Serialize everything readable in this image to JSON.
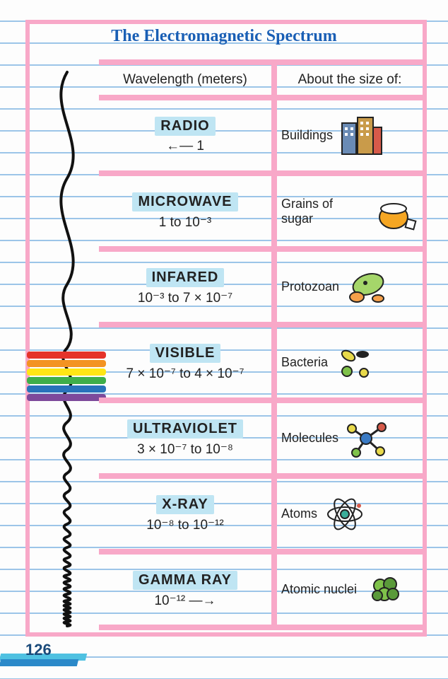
{
  "title": "The Electromagnetic Spectrum",
  "page_number": "126",
  "header": {
    "wavelength_col": "Wavelength (meters)",
    "size_col": "About the size of:"
  },
  "colors": {
    "frame": "#f8a8c8",
    "title": "#1a5fb5",
    "highlight": "#bfe5f3",
    "ruled_line": "#9cc5e8",
    "text": "#222222",
    "page_accent1": "#4fc1e1",
    "page_accent2": "#2b89c9"
  },
  "rainbow_colors": [
    "#e5332a",
    "#f39322",
    "#ffe615",
    "#3eae4a",
    "#2873ba",
    "#7d4a9b"
  ],
  "rows": [
    {
      "name": "RADIO",
      "range_html": "←— 1",
      "size": "Buildings",
      "icon": "buildings"
    },
    {
      "name": "MICROWAVE",
      "range_html": "1 to 10⁻³",
      "size": "Grains of sugar",
      "icon": "sugar"
    },
    {
      "name": "INFARED",
      "range_html": "10⁻³ to 7 × 10⁻⁷",
      "size": "Protozoan",
      "icon": "protozoan"
    },
    {
      "name": "VISIBLE",
      "range_html": "7 × 10⁻⁷ to 4 × 10⁻⁷",
      "size": "Bacteria",
      "icon": "bacteria"
    },
    {
      "name": "ULTRAVIOLET",
      "range_html": "3 × 10⁻⁷ to 10⁻⁸",
      "size": "Molecules",
      "icon": "molecules"
    },
    {
      "name": "X-RAY",
      "range_html": "10⁻⁸ to 10⁻¹²",
      "size": "Atoms",
      "icon": "atoms"
    },
    {
      "name": "GAMMA RAY",
      "range_html": "10⁻¹² —→",
      "size": "Atomic nuclei",
      "icon": "nuclei"
    }
  ]
}
